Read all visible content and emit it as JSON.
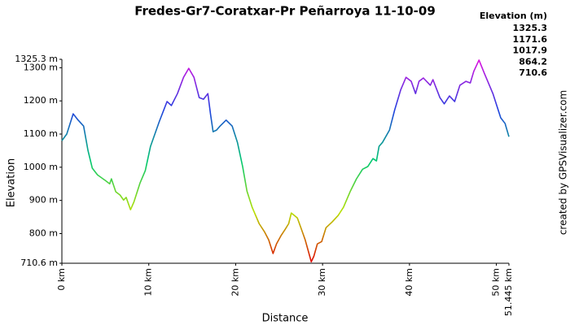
{
  "chart_data": {
    "type": "line",
    "title": "Fredes-Gr7-Coratxar-Pr Peñarroya 11-10-09",
    "x_label": "Distance",
    "y_label": "Elevation",
    "credit": "created by GPSVisualizer.com",
    "legend_title": "Elevation (m)",
    "color_scale": [
      {
        "value": 1325.3,
        "color": "#e010e0"
      },
      {
        "value": 1171.6,
        "color": "#2040e0"
      },
      {
        "value": 1017.9,
        "color": "#00c870"
      },
      {
        "value": 864.2,
        "color": "#b8e000"
      },
      {
        "value": 710.6,
        "color": "#e00000"
      }
    ],
    "x": [
      0,
      0.56,
      1.3,
      1.87,
      2.5,
      3.0,
      3.5,
      4.1,
      5.0,
      5.5,
      5.7,
      6.2,
      6.7,
      7.1,
      7.4,
      7.9,
      8.3,
      9.0,
      9.6,
      10.2,
      11.2,
      12.1,
      12.6,
      13.3,
      14.0,
      14.6,
      15.2,
      15.8,
      16.3,
      16.8,
      17.1,
      17.4,
      17.8,
      18.2,
      18.9,
      19.6,
      20.2,
      20.8,
      21.3,
      21.9,
      22.7,
      23.3,
      23.8,
      24.3,
      24.7,
      25.2,
      25.7,
      26.1,
      26.4,
      27.1,
      27.5,
      28.0,
      28.7,
      29.0,
      29.4,
      29.9,
      30.4,
      31.1,
      31.8,
      32.4,
      33.2,
      33.9,
      34.6,
      35.2,
      35.8,
      36.2,
      36.5,
      36.9,
      37.7,
      38.3,
      39.0,
      39.6,
      40.2,
      40.7,
      41.1,
      41.6,
      42.4,
      42.7,
      43.5,
      44.0,
      44.6,
      45.2,
      45.8,
      46.5,
      47.0,
      47.4,
      48.0,
      48.6,
      49.6,
      50.5,
      51.0,
      51.445
    ],
    "series": [
      {
        "values": [
          1080,
          1100,
          1161,
          1142,
          1124,
          1051,
          997,
          977,
          960,
          950,
          965,
          926,
          916,
          901,
          909,
          872,
          896,
          953,
          990,
          1063,
          1137,
          1198,
          1186,
          1222,
          1271,
          1298,
          1271,
          1210,
          1205,
          1222,
          1161,
          1107,
          1112,
          1124,
          1142,
          1124,
          1075,
          1002,
          928,
          879,
          830,
          806,
          781,
          740,
          769,
          793,
          813,
          830,
          862,
          847,
          818,
          781,
          715,
          732,
          769,
          776,
          818,
          835,
          855,
          879,
          928,
          965,
          994,
          1002,
          1026,
          1019,
          1063,
          1075,
          1112,
          1173,
          1234,
          1271,
          1259,
          1222,
          1259,
          1269,
          1247,
          1264,
          1210,
          1191,
          1215,
          1198,
          1247,
          1259,
          1254,
          1289,
          1323,
          1284,
          1222,
          1149,
          1132,
          1092
        ]
      }
    ],
    "xlim": [
      0,
      51.445
    ],
    "xticks": [
      {
        "value": 0,
        "label": "0 km"
      },
      {
        "value": 10,
        "label": "10 km"
      },
      {
        "value": 20,
        "label": "20 km"
      },
      {
        "value": 30,
        "label": "30 km"
      },
      {
        "value": 40,
        "label": "40 km"
      },
      {
        "value": 50,
        "label": "50 km"
      },
      {
        "value": 51.445,
        "label": "51.445 km"
      }
    ],
    "ylim": [
      710.6,
      1325.3
    ],
    "yticks": [
      {
        "value": 710.6,
        "label": "710.6 m"
      },
      {
        "value": 800,
        "label": "800 m"
      },
      {
        "value": 900,
        "label": "900 m"
      },
      {
        "value": 1000,
        "label": "1000 m"
      },
      {
        "value": 1100,
        "label": "1100 m"
      },
      {
        "value": 1200,
        "label": "1200 m"
      },
      {
        "value": 1300,
        "label": "1300 m"
      },
      {
        "value": 1325.3,
        "label": "1325.3 m"
      }
    ]
  }
}
